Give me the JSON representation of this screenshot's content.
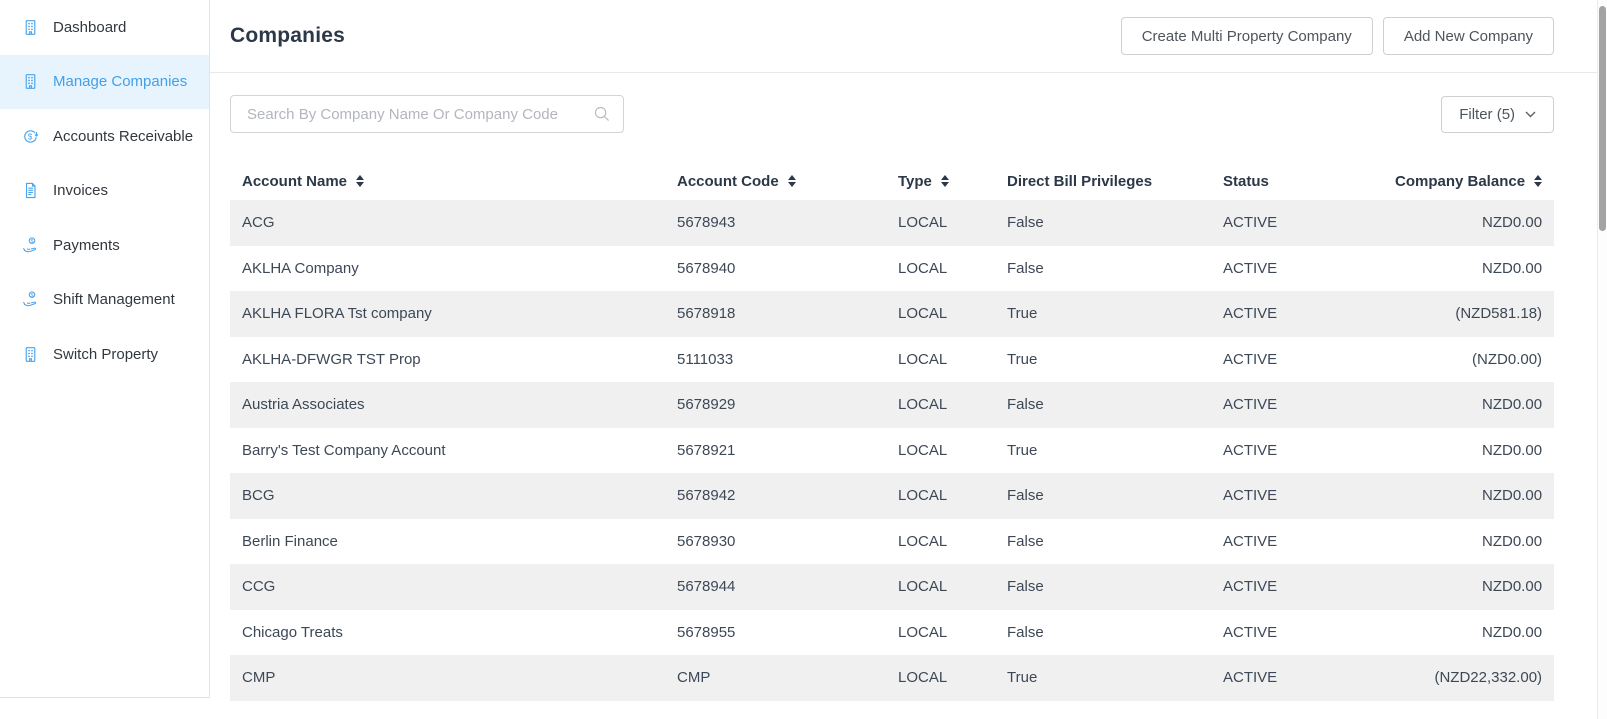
{
  "sidebar": {
    "items": [
      {
        "label": "Dashboard",
        "icon": "building-icon",
        "active": false
      },
      {
        "label": "Manage Companies",
        "icon": "building-icon",
        "active": true
      },
      {
        "label": "Accounts Receivable",
        "icon": "dollar-circle-icon",
        "active": false
      },
      {
        "label": "Invoices",
        "icon": "invoice-icon",
        "active": false
      },
      {
        "label": "Payments",
        "icon": "hand-coin-icon",
        "active": false
      },
      {
        "label": "Shift Management",
        "icon": "hand-coin-icon",
        "active": false
      },
      {
        "label": "Switch Property",
        "icon": "building-icon",
        "active": false
      }
    ]
  },
  "header": {
    "title": "Companies",
    "buttons": [
      {
        "label": "Create Multi Property Company"
      },
      {
        "label": "Add New Company"
      }
    ]
  },
  "toolbar": {
    "search_placeholder": "Search By Company Name Or Company Code",
    "search_value": "",
    "search_icon": "search-icon",
    "filter_label": "Filter (5)",
    "filter_chevron_icon": "chevron-down-icon"
  },
  "table": {
    "columns": [
      {
        "label": "Account Name",
        "sortable": true
      },
      {
        "label": "Account Code",
        "sortable": true
      },
      {
        "label": "Type",
        "sortable": true
      },
      {
        "label": "Direct Bill Privileges",
        "sortable": false
      },
      {
        "label": "Status",
        "sortable": false
      },
      {
        "label": "Company Balance",
        "sortable": true
      }
    ],
    "rows": [
      {
        "account_name": "ACG",
        "account_code": "5678943",
        "type": "LOCAL",
        "direct_bill_privileges": "False",
        "status": "ACTIVE",
        "company_balance": "NZD0.00"
      },
      {
        "account_name": "AKLHA Company",
        "account_code": "5678940",
        "type": "LOCAL",
        "direct_bill_privileges": "False",
        "status": "ACTIVE",
        "company_balance": "NZD0.00"
      },
      {
        "account_name": "AKLHA FLORA Tst company",
        "account_code": "5678918",
        "type": "LOCAL",
        "direct_bill_privileges": "True",
        "status": "ACTIVE",
        "company_balance": "(NZD581.18)"
      },
      {
        "account_name": "AKLHA-DFWGR TST Prop",
        "account_code": "5111033",
        "type": "LOCAL",
        "direct_bill_privileges": "True",
        "status": "ACTIVE",
        "company_balance": "(NZD0.00)"
      },
      {
        "account_name": "Austria Associates",
        "account_code": "5678929",
        "type": "LOCAL",
        "direct_bill_privileges": "False",
        "status": "ACTIVE",
        "company_balance": "NZD0.00"
      },
      {
        "account_name": "Barry's Test Company Account",
        "account_code": "5678921",
        "type": "LOCAL",
        "direct_bill_privileges": "True",
        "status": "ACTIVE",
        "company_balance": "NZD0.00"
      },
      {
        "account_name": "BCG",
        "account_code": "5678942",
        "type": "LOCAL",
        "direct_bill_privileges": "False",
        "status": "ACTIVE",
        "company_balance": "NZD0.00"
      },
      {
        "account_name": "Berlin Finance",
        "account_code": "5678930",
        "type": "LOCAL",
        "direct_bill_privileges": "False",
        "status": "ACTIVE",
        "company_balance": "NZD0.00"
      },
      {
        "account_name": "CCG",
        "account_code": "5678944",
        "type": "LOCAL",
        "direct_bill_privileges": "False",
        "status": "ACTIVE",
        "company_balance": "NZD0.00"
      },
      {
        "account_name": "Chicago Treats",
        "account_code": "5678955",
        "type": "LOCAL",
        "direct_bill_privileges": "False",
        "status": "ACTIVE",
        "company_balance": "NZD0.00"
      },
      {
        "account_name": "CMP",
        "account_code": "CMP",
        "type": "LOCAL",
        "direct_bill_privileges": "True",
        "status": "ACTIVE",
        "company_balance": "(NZD22,332.00)"
      }
    ]
  },
  "colors": {
    "accent_blue": "#42a0e8",
    "sidebar_active_bg": "#e8f4fd",
    "icon_blue": "#4aa3eb",
    "heading_text": "#2c3848",
    "body_text": "#3d4856",
    "row_alt_bg": "#f0f0f0",
    "border": "#e4e4e4"
  }
}
